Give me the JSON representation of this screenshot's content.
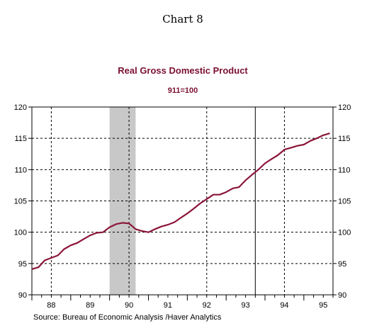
{
  "page": {
    "heading": "Chart 8"
  },
  "chart_data": {
    "type": "line",
    "title": "Real Gross Domestic Product",
    "subtitle": "911=100",
    "xlabel": "",
    "ylabel": "",
    "source": "Source:  Bureau of Economic Analysis /Haver Analytics",
    "ylim": [
      90,
      120
    ],
    "y_ticks": [
      90,
      95,
      100,
      105,
      110,
      115,
      120
    ],
    "xlim": [
      1988.0,
      1995.75
    ],
    "x_year_labels": [
      "88",
      "89",
      "90",
      "91",
      "92",
      "93",
      "94",
      "95"
    ],
    "x_gridlines": [
      1988.5,
      1990.5,
      1992.5,
      1994.5
    ],
    "vertical_marker": 1993.75,
    "recession_shade": [
      1990.0,
      1990.67
    ],
    "grid": true,
    "series": [
      {
        "color": "#8b1538",
        "x": [
          1988.0,
          1988.17,
          1988.33,
          1988.5,
          1988.67,
          1988.83,
          1989.0,
          1989.17,
          1989.33,
          1989.5,
          1989.67,
          1989.83,
          1990.0,
          1990.17,
          1990.33,
          1990.5,
          1990.67,
          1990.83,
          1991.0,
          1991.17,
          1991.33,
          1991.5,
          1991.67,
          1991.83,
          1992.0,
          1992.17,
          1992.33,
          1992.5,
          1992.67,
          1992.83,
          1993.0,
          1993.17,
          1993.33,
          1993.5,
          1993.67,
          1993.83,
          1994.0,
          1994.17,
          1994.33,
          1994.5,
          1994.67,
          1994.83,
          1995.0,
          1995.17,
          1995.33,
          1995.5,
          1995.67
        ],
        "values": [
          94.1,
          94.4,
          95.5,
          95.9,
          96.3,
          97.3,
          97.9,
          98.3,
          98.9,
          99.5,
          99.9,
          100.0,
          100.8,
          101.3,
          101.5,
          101.4,
          100.5,
          100.2,
          100.0,
          100.5,
          100.9,
          101.2,
          101.6,
          102.3,
          103.0,
          103.8,
          104.6,
          105.3,
          106.0,
          106.0,
          106.4,
          107.0,
          107.2,
          108.3,
          109.2,
          110.0,
          111.0,
          111.7,
          112.3,
          113.2,
          113.5,
          113.8,
          114.0,
          114.6,
          115.0,
          115.5,
          115.8
        ]
      }
    ]
  }
}
